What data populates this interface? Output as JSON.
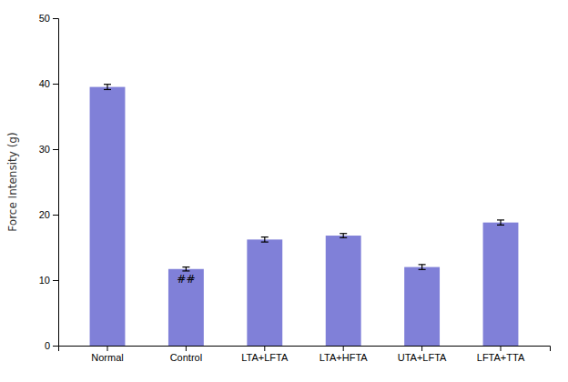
{
  "chart_data": {
    "type": "bar",
    "categories": [
      "Normal",
      "Control",
      "LTA+LFTA",
      "LTA+HFTA",
      "UTA+LFTA",
      "LFTA+TTA"
    ],
    "values": [
      39.5,
      11.7,
      16.2,
      16.8,
      12.0,
      18.8
    ],
    "errors": [
      0.4,
      0.3,
      0.38,
      0.32,
      0.38,
      0.38
    ],
    "color": "#8080d8",
    "ylabel": "Force Intensity (g)",
    "ylim": [
      0,
      50
    ],
    "yticks": [
      0,
      10,
      20,
      30,
      40,
      50
    ],
    "grid": false,
    "annotations": [
      {
        "text": "##",
        "x": "Control"
      }
    ]
  }
}
